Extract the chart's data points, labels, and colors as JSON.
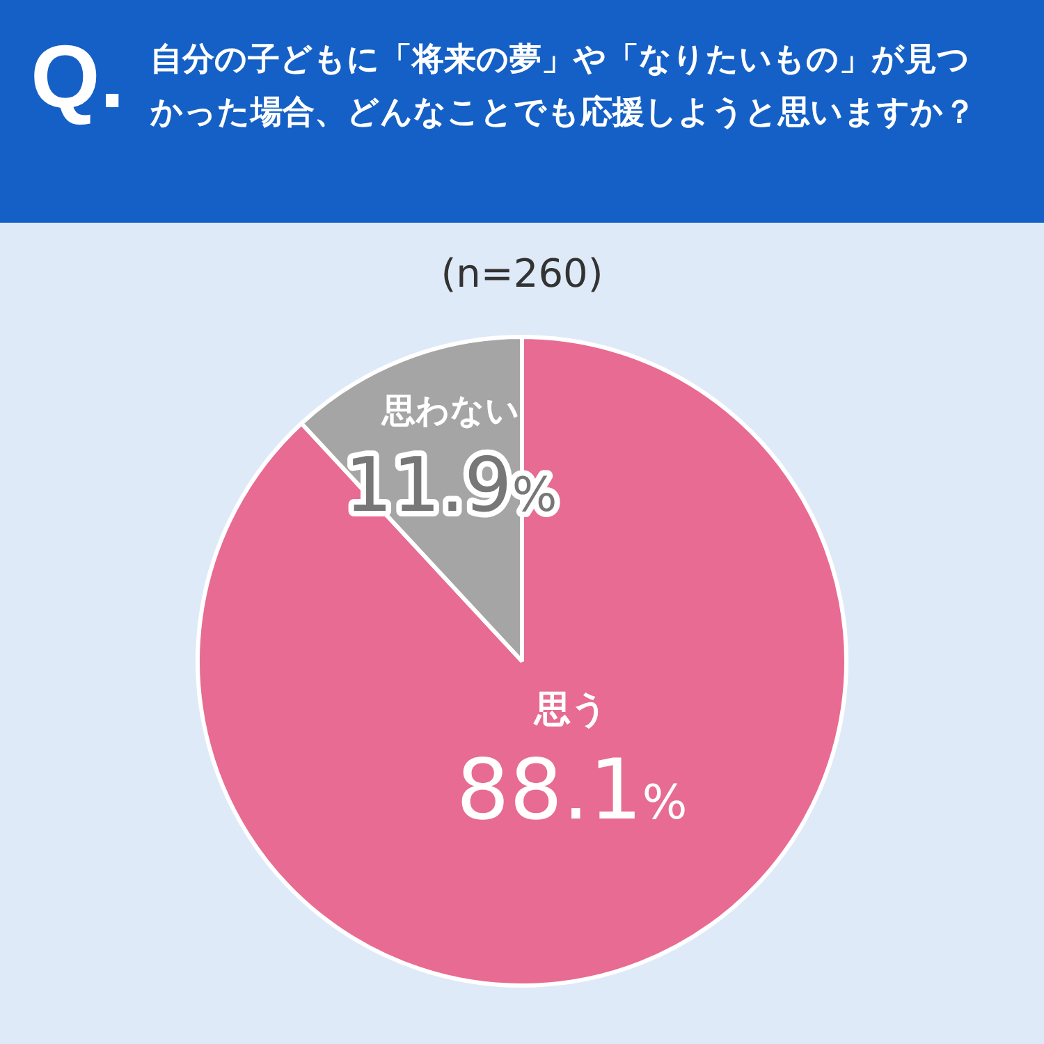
{
  "chart_data": {
    "type": "pie",
    "title": "自分の子どもに「将来の夢」や「なりたいもの」が見つかった場合、どんなことでも応援しようと思いますか？",
    "subtitle": "(n=260)",
    "annotations": [
      "Q."
    ],
    "categories": [
      "思う",
      "思わない"
    ],
    "values": [
      88.1,
      11.9
    ],
    "colors": [
      "#e76b92",
      "#a5a5a5"
    ],
    "value_labels": [
      "88.1%",
      "11.9%"
    ],
    "legend": false
  }
}
